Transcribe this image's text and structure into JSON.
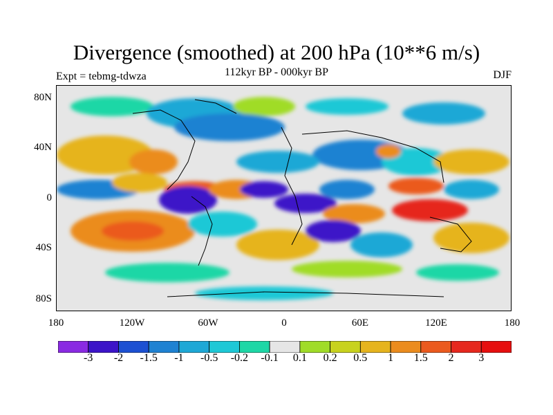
{
  "title": "Divergence (smoothed) at 200 hPa (10**6 m/s)",
  "left_label": "Expt = tebmg-tdwza",
  "center_label": "112kyr BP - 000kyr BP",
  "right_label": "DJF",
  "lat_ticks": [
    "80N",
    "40N",
    "0",
    "40S",
    "80S"
  ],
  "lon_ticks": [
    "180",
    "120W",
    "60W",
    "0",
    "60E",
    "120E",
    "180"
  ],
  "colorbar": {
    "labels": [
      "-3",
      "-2",
      "-1.5",
      "-1",
      "-0.5",
      "-0.2",
      "-0.1",
      "0.1",
      "0.2",
      "0.5",
      "1",
      "1.5",
      "2",
      "3"
    ],
    "colors": [
      "#8a2be2",
      "#3c14c8",
      "#1c50d2",
      "#1f82d2",
      "#1ea8d6",
      "#1ec8d6",
      "#1ed7a6",
      "#e6e6e6",
      "#a0dc28",
      "#c8d21e",
      "#e6b41e",
      "#eb8c1e",
      "#eb5a1e",
      "#e6281e",
      "#e60f0f"
    ]
  },
  "colors": {
    "background": "#ffffff",
    "neutral_fill": "#e6e6e6"
  }
}
